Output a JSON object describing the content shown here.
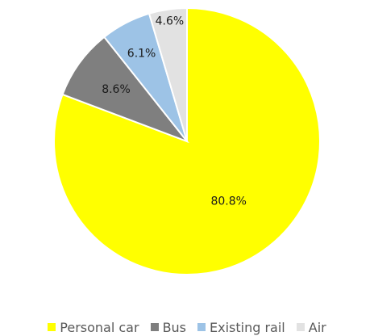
{
  "chart_data": {
    "type": "pie",
    "categories": [
      "Personal car",
      "Bus",
      "Existing rail",
      "Air"
    ],
    "values": [
      80.8,
      8.6,
      6.1,
      4.6
    ],
    "labels": [
      "80.8%",
      "8.6%",
      "6.1%",
      "4.6%"
    ],
    "colors": [
      "#FFFF00",
      "#7F7F7F",
      "#9DC3E6",
      "#E2E2E2"
    ],
    "start": "12 o'clock",
    "direction": "clockwise",
    "legend_position": "bottom"
  }
}
